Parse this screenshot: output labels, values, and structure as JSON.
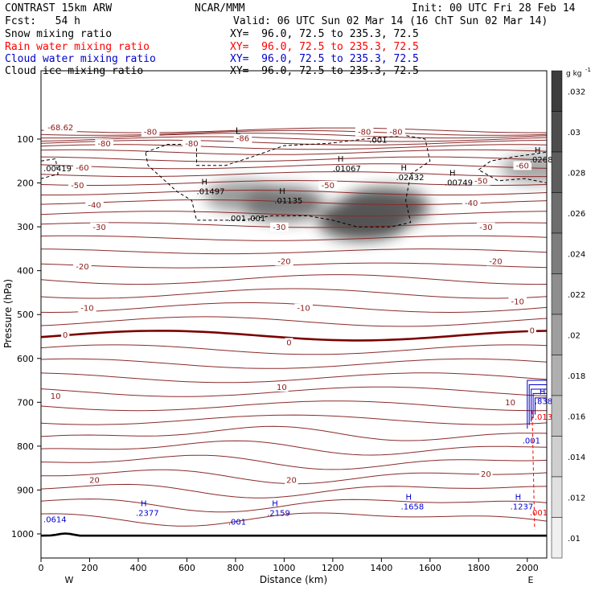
{
  "header": {
    "model": "CONTRAST 15km ARW",
    "center": "NCAR/MMM",
    "init": "Init: 00 UTC Fri 28 Feb 14",
    "fcst": "Fcst:   54 h",
    "valid": "Valid: 06 UTC Sun 02 Mar 14 (16 ChT Sun 02 Mar 14)"
  },
  "fields": [
    {
      "name": "Snow mixing ratio",
      "xy": "XY=  96.0, 72.5 to 235.3, 72.5",
      "color": "#000000"
    },
    {
      "name": "Rain water mixing ratio",
      "xy": "XY=  96.0, 72.5 to 235.3, 72.5",
      "color": "#ff0000"
    },
    {
      "name": "Cloud water mixing ratio",
      "xy": "XY=  96.0, 72.5 to 235.3, 72.5",
      "color": "#0000cc"
    },
    {
      "name": "Cloud ice mixing ratio",
      "xy": "XY=  96.0, 72.5 to 235.3, 72.5",
      "color": "#000000"
    }
  ],
  "colorbar": {
    "unit": "g kg",
    "unit_exp": "-1",
    "ticks": [
      ".032",
      ".03",
      ".028",
      ".026",
      ".024",
      ".022",
      ".02",
      ".018",
      ".016",
      ".014",
      ".012",
      ".01"
    ]
  },
  "chart_data": {
    "type": "heatmap",
    "title": "",
    "xlabel": "Distance (km)",
    "ylabel": "Pressure (hPa)",
    "xlim": [
      0,
      2080
    ],
    "ylim": [
      1050,
      50
    ],
    "xticks": [
      0,
      200,
      400,
      600,
      800,
      1000,
      1200,
      1400,
      1600,
      1800,
      2000
    ],
    "yticks": [
      100,
      200,
      300,
      400,
      500,
      600,
      700,
      800,
      900,
      1000
    ],
    "xend_labels": {
      "left": "W",
      "right": "E"
    },
    "temperature_contours": [
      {
        "label": "-68.62",
        "x": 80,
        "p": 78
      },
      {
        "label": "-80",
        "x": 450,
        "p": 88
      },
      {
        "label": "-86",
        "x": 830,
        "p": 103
      },
      {
        "label": "-80",
        "x": 620,
        "p": 115
      },
      {
        "label": "-80",
        "x": 1330,
        "p": 88
      },
      {
        "label": "-80",
        "x": 1460,
        "p": 88
      },
      {
        "label": "-80",
        "x": 260,
        "p": 115
      },
      {
        "label": "-60",
        "x": 170,
        "p": 170
      },
      {
        "label": "-60",
        "x": 1980,
        "p": 165
      },
      {
        "label": "-50",
        "x": 150,
        "p": 210
      },
      {
        "label": "-50",
        "x": 1180,
        "p": 210
      },
      {
        "label": "-50",
        "x": 1810,
        "p": 200
      },
      {
        "label": "-40",
        "x": 220,
        "p": 255
      },
      {
        "label": "-40",
        "x": 1770,
        "p": 250
      },
      {
        "label": "-30",
        "x": 240,
        "p": 305
      },
      {
        "label": "-30",
        "x": 980,
        "p": 305
      },
      {
        "label": "-30",
        "x": 1830,
        "p": 305
      },
      {
        "label": "-20",
        "x": 170,
        "p": 395
      },
      {
        "label": "-20",
        "x": 1000,
        "p": 383
      },
      {
        "label": "-20",
        "x": 1870,
        "p": 383
      },
      {
        "label": "-10",
        "x": 190,
        "p": 490
      },
      {
        "label": "-10",
        "x": 1080,
        "p": 490
      },
      {
        "label": "-10",
        "x": 1960,
        "p": 475
      },
      {
        "label": "0",
        "x": 100,
        "p": 551
      },
      {
        "label": "0",
        "x": 1020,
        "p": 568
      },
      {
        "label": "0",
        "x": 2020,
        "p": 541
      },
      {
        "label": "10",
        "x": 60,
        "p": 690
      },
      {
        "label": "10",
        "x": 990,
        "p": 670
      },
      {
        "label": "10",
        "x": 1930,
        "p": 705
      },
      {
        "label": "20",
        "x": 220,
        "p": 882
      },
      {
        "label": "20",
        "x": 1030,
        "p": 882
      },
      {
        "label": "20",
        "x": 1830,
        "p": 868
      }
    ],
    "ice_maxima": [
      {
        "label": "H",
        "value": ".01497",
        "x": 640,
        "p": 222
      },
      {
        "label": "H",
        "value": ".01135",
        "x": 960,
        "p": 243
      },
      {
        "label": "H",
        "value": ".01067",
        "x": 1200,
        "p": 170
      },
      {
        "label": "H",
        "value": ".02432",
        "x": 1460,
        "p": 190
      },
      {
        "label": "H",
        "value": ".00749",
        "x": 1660,
        "p": 202
      },
      {
        "label": "H",
        "value": ".0268",
        "x": 2010,
        "p": 150
      },
      {
        "label": "",
        "value": ".00419",
        "x": 10,
        "p": 170
      },
      {
        "label": "",
        "value": ".001",
        "x": 1350,
        "p": 105
      },
      {
        "label": "",
        "value": ".001",
        "x": 770,
        "p": 283
      },
      {
        "label": "",
        "value": ".001",
        "x": 850,
        "p": 283
      }
    ],
    "low_marker": {
      "label": "L",
      "x": 800,
      "p": 88
    },
    "cloud_water_maxima": [
      {
        "label": "H",
        "value": ".2377",
        "x": 390,
        "p": 955
      },
      {
        "label": "H",
        "value": ".2159",
        "x": 930,
        "p": 955
      },
      {
        "label": "H",
        "value": ".1658",
        "x": 1480,
        "p": 940
      },
      {
        "label": "H",
        "value": ".1237",
        "x": 1930,
        "p": 940
      },
      {
        "label": "",
        "value": ".0614",
        "x": 10,
        "p": 970
      },
      {
        "label": "",
        "value": ".001",
        "x": 770,
        "p": 975
      },
      {
        "label": "H",
        "value": ".838",
        "x": 2030,
        "p": 700
      },
      {
        "label": "",
        "value": ".001",
        "x": 1980,
        "p": 790
      }
    ],
    "rain_labels": [
      {
        "label": "",
        "value": ".0136",
        "x": 2030,
        "p": 740
      },
      {
        "label": "",
        "value": ".001",
        "x": 2010,
        "p": 958
      }
    ],
    "snow_shading_maxima_gkg": [
      {
        "x": 820,
        "p": 230,
        "value": 0.018
      },
      {
        "x": 1000,
        "p": 248,
        "value": 0.024
      },
      {
        "x": 1320,
        "p": 285,
        "value": 0.03
      },
      {
        "x": 1420,
        "p": 255,
        "value": 0.028
      },
      {
        "x": 2030,
        "p": 168,
        "value": 0.016
      }
    ]
  }
}
